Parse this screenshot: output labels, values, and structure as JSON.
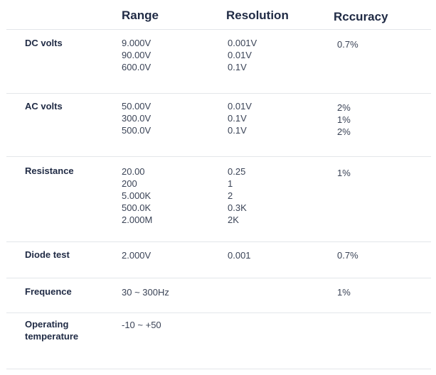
{
  "headers": {
    "range": "Range",
    "resolution": "Resolution",
    "accuracy": "Rccuracy"
  },
  "rows": [
    {
      "label": "DC volts",
      "range": [
        "9.000V",
        "90.00V",
        "600.0V"
      ],
      "resolution": [
        "0.001V",
        "0.01V",
        "0.1V"
      ],
      "accuracy": [
        "0.7%"
      ]
    },
    {
      "label": "AC volts",
      "range": [
        "50.00V",
        "300.0V",
        "500.0V"
      ],
      "resolution": [
        "0.01V",
        "0.1V",
        "0.1V"
      ],
      "accuracy": [
        "2%",
        "1%",
        "2%"
      ]
    },
    {
      "label": "Resistance",
      "range": [
        "20.00",
        "200",
        "5.000K",
        "500.0K",
        "2.000M"
      ],
      "resolution": [
        "0.25",
        "1",
        "2",
        "0.3K",
        "2K"
      ],
      "accuracy": [
        "1%"
      ]
    },
    {
      "label": "Diode test",
      "range": [
        "2.000V"
      ],
      "resolution": [
        "0.001"
      ],
      "accuracy": [
        "0.7%"
      ]
    },
    {
      "label": "Frequence",
      "range": [
        "30 ~ 300Hz"
      ],
      "resolution": [],
      "accuracy": [
        "1%"
      ]
    },
    {
      "label": "Operating temperature",
      "range": [
        "-10 ~ +50"
      ],
      "resolution": [],
      "accuracy": []
    }
  ]
}
